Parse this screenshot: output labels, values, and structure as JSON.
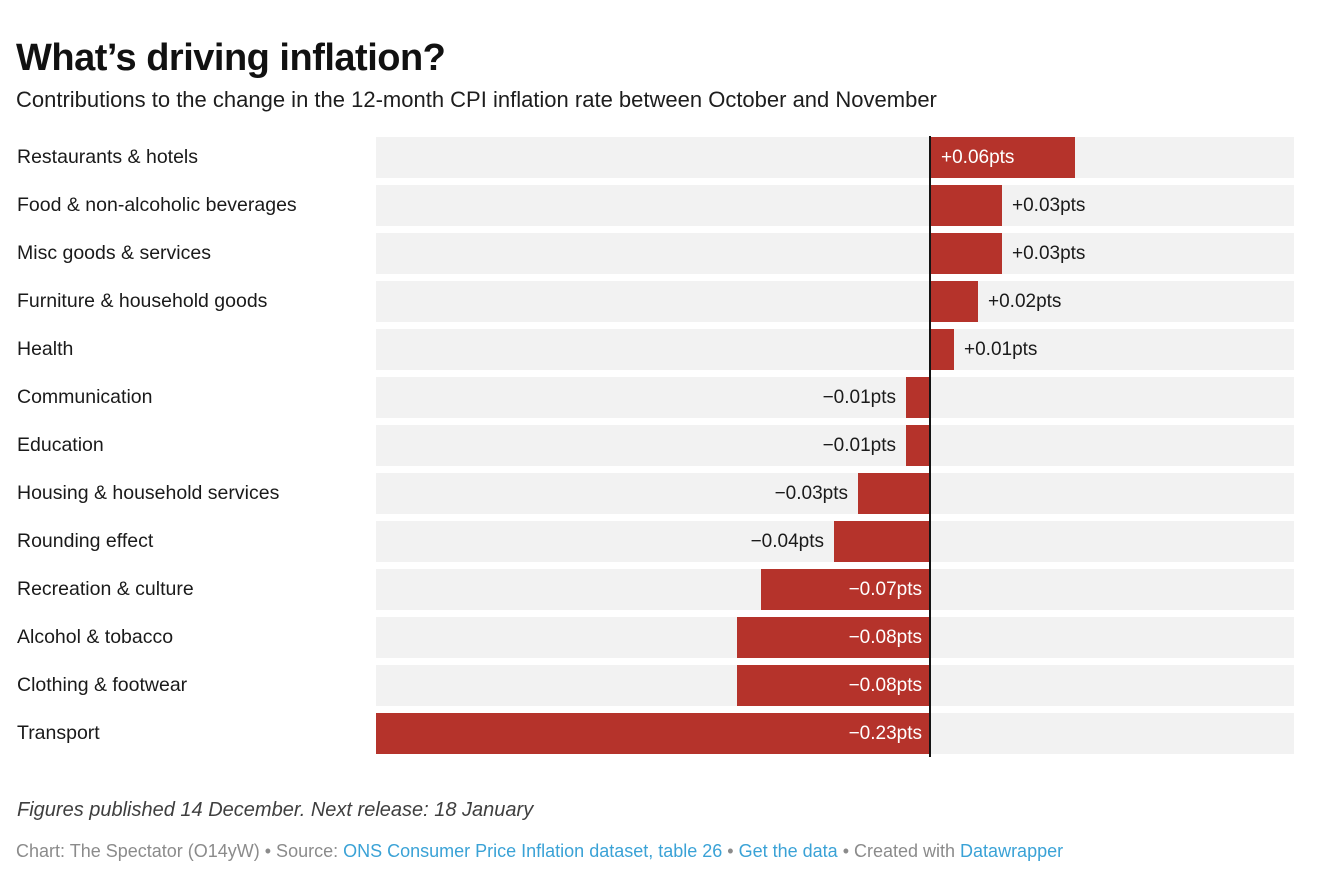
{
  "header": {
    "title": "What’s driving inflation?",
    "subtitle": "Contributions to the change in the 12-month CPI inflation rate between October and November"
  },
  "chart_data": {
    "type": "bar",
    "orientation": "horizontal",
    "title": "What’s driving inflation?",
    "subtitle": "Contributions to the change in the 12-month CPI inflation rate between October and November",
    "unit": "pts",
    "baseline": 0,
    "xlim": [
      -0.23,
      0.151
    ],
    "grid": false,
    "legend": "none",
    "categories": [
      "Restaurants & hotels",
      "Food & non-alcoholic beverages",
      "Misc goods & services",
      "Furniture & household goods",
      "Health",
      "Communication",
      "Education",
      "Housing & household services",
      "Rounding effect",
      "Recreation & culture",
      "Alcohol & tobacco",
      "Clothing & footwear",
      "Transport"
    ],
    "values": [
      0.06,
      0.03,
      0.03,
      0.02,
      0.01,
      -0.01,
      -0.01,
      -0.03,
      -0.04,
      -0.07,
      -0.08,
      -0.08,
      -0.23
    ],
    "labels": [
      "+0.06pts",
      "+0.03pts",
      "+0.03pts",
      "+0.02pts",
      "+0.01pts",
      "−0.01pts",
      "−0.01pts",
      "−0.03pts",
      "−0.04pts",
      "−0.07pts",
      "−0.08pts",
      "−0.08pts",
      "−0.23pts"
    ],
    "label_inside": [
      true,
      false,
      false,
      false,
      false,
      false,
      false,
      false,
      false,
      true,
      true,
      true,
      true
    ],
    "bar_color": "#b5332b",
    "track_color": "#f2f2f2",
    "baseline_color": "#141414"
  },
  "footer": {
    "note": "Figures published 14 December. Next release: 18 January",
    "attribution": {
      "prefix": "Chart: The Spectator (O14yW) • Source: ",
      "source_link": "ONS Consumer Price Inflation dataset, table 26",
      "sep1": " • ",
      "get_data_link": "Get the data",
      "sep2": " • Created with ",
      "datawrapper_link": "Datawrapper"
    }
  },
  "colors": {
    "bar": "#b5332b",
    "track": "#f2f2f2",
    "link": "#3aa2d6",
    "muted_text": "#8b8b8b",
    "title_text": "#111111"
  }
}
